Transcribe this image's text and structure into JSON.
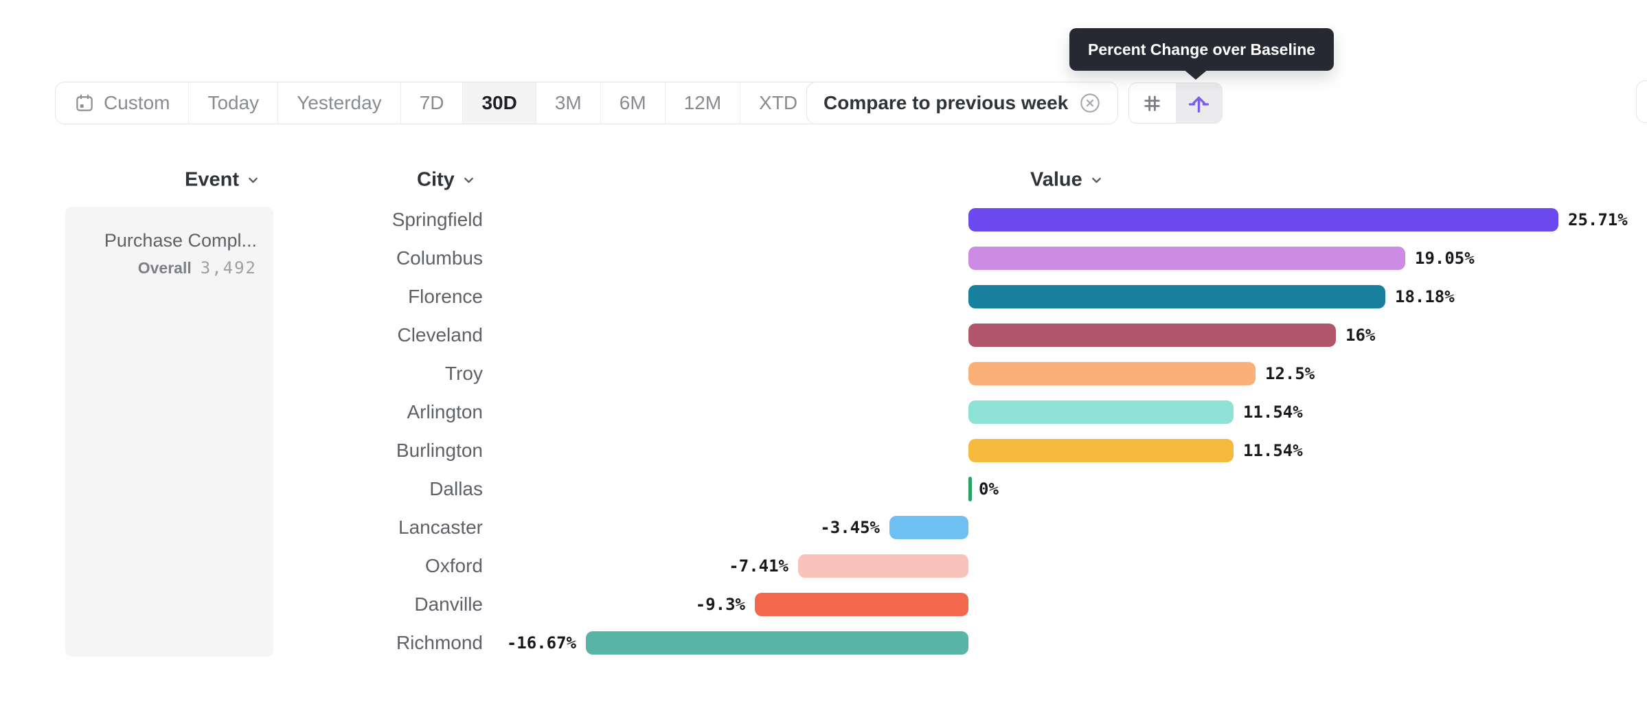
{
  "toolbar": {
    "date_ranges": [
      {
        "label": "Custom",
        "icon": "calendar-icon"
      },
      {
        "label": "Today"
      },
      {
        "label": "Yesterday"
      },
      {
        "label": "7D"
      },
      {
        "label": "30D",
        "selected": true
      },
      {
        "label": "3M"
      },
      {
        "label": "6M"
      },
      {
        "label": "12M"
      },
      {
        "label": "XTD",
        "chevron": true
      }
    ],
    "compare_label": "Compare to previous week",
    "view_modes": [
      {
        "name": "absolute-numbers",
        "icon": "hash-icon"
      },
      {
        "name": "percent-change",
        "icon": "percent-change-arrow-icon",
        "selected": true
      }
    ]
  },
  "tooltip": {
    "text": "Percent Change over Baseline"
  },
  "columns": {
    "event": "Event",
    "city": "City",
    "value": "Value"
  },
  "event_panel": {
    "title": "Purchase Compl...",
    "overall_label": "Overall",
    "overall_value": "3,492"
  },
  "chart_data": {
    "type": "bar",
    "orientation": "horizontal",
    "title": "",
    "xlabel": "Value",
    "ylabel": "City",
    "unit": "%",
    "baseline": 0,
    "xlim": [
      -16.67,
      25.71
    ],
    "grid": false,
    "legend": false,
    "categories": [
      "Springfield",
      "Columbus",
      "Florence",
      "Cleveland",
      "Troy",
      "Arlington",
      "Burlington",
      "Dallas",
      "Lancaster",
      "Oxford",
      "Danville",
      "Richmond"
    ],
    "values": [
      25.71,
      19.05,
      18.18,
      16,
      12.5,
      11.54,
      11.54,
      0,
      -3.45,
      -7.41,
      -9.3,
      -16.67
    ],
    "value_labels": [
      "25.71%",
      "19.05%",
      "18.18%",
      "16%",
      "12.5%",
      "11.54%",
      "11.54%",
      "0%",
      "-3.45%",
      "-7.41%",
      "-9.3%",
      "-16.67%"
    ],
    "bar_colors": [
      "#6C49EE",
      "#CE8BE3",
      "#17809F",
      "#AF566A",
      "#FBB077",
      "#8DE1D5",
      "#F5B93D",
      "#2BA265",
      "#6FC0F2",
      "#F9C2BA",
      "#F4694D",
      "#57B5A6"
    ]
  },
  "colors": {
    "accent_purple": "#7A5CF0",
    "selected_segment_bg": "#f4f4f5",
    "tooltip_bg": "#272932",
    "panel_bg": "#f5f5f6",
    "border": "#e5e5e8",
    "muted_text": "#888c91",
    "bar_label_text": "#17191d"
  }
}
